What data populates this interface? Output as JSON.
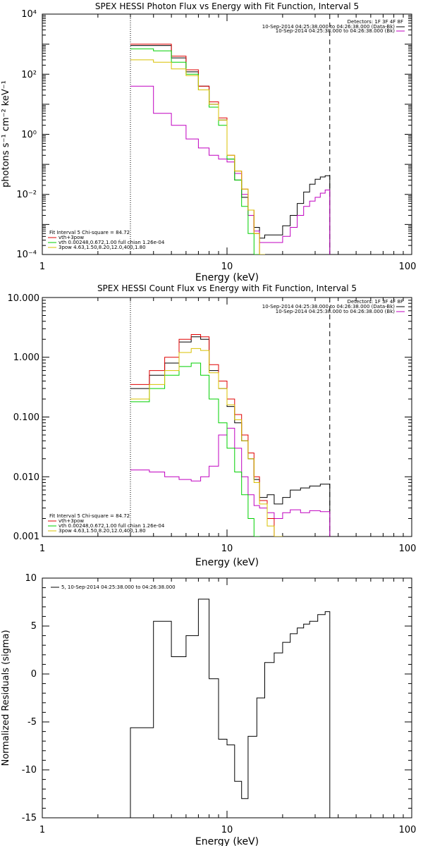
{
  "chart_data": [
    {
      "type": "line",
      "title": "SPEX HESSI Photon Flux vs Energy with Fit Function, Interval 5",
      "xlabel": "Energy (keV)",
      "ylabel": "photons s⁻¹ cm⁻² keV⁻¹",
      "xscale": "log",
      "yscale": "log",
      "xlim": [
        1,
        100
      ],
      "ylim": [
        0.0001,
        10000
      ],
      "x_ticks": [
        "1",
        "10",
        "100"
      ],
      "y_ticks": [
        "10⁻⁴",
        "10⁻²",
        "10⁰",
        "10²",
        "10⁴"
      ],
      "vlines": [
        {
          "x": 3,
          "style": "dotted"
        },
        {
          "x": 36,
          "style": "dashed"
        }
      ],
      "legend_top_right": [
        {
          "text": "Detectors: 1F 3F 4F 8F",
          "color": "#000000"
        },
        {
          "text": "10-Sep-2014 04:25:38.000 to 04:26:38.000 (Data-Bk)",
          "color": "#000000"
        },
        {
          "text": "10-Sep-2014 04:25:38.000 to 04:26:38.000 (Bk)",
          "color": "#c000c0"
        }
      ],
      "legend_bottom_left": [
        {
          "text": "Fit Interval 5   Chi-square = 84.72",
          "color": "#000000"
        },
        {
          "text": "vth+3pow",
          "color": "#e00000"
        },
        {
          "text": "vth 0.00248,0.672,1.00  full chian 1.26e-04",
          "color": "#00d000"
        },
        {
          "text": "3pow 4.63,1.50,8.20,12.0,400,1.80",
          "color": "#d8c000"
        }
      ],
      "edges": [
        3.0,
        3.5,
        4.0,
        4.5,
        5.0,
        5.5,
        6.0,
        6.5,
        7.0,
        7.5,
        8.0,
        8.5,
        9.0,
        9.5,
        10.0,
        11.0,
        12.0,
        13.0,
        14.0,
        15.0,
        16.0,
        18.0,
        20.0,
        22.0,
        24.0,
        26.0,
        28.0,
        30.0,
        32.0,
        34.0,
        36.0
      ],
      "series": [
        {
          "name": "",
          "color": "#000000",
          "values": [
            900,
            900,
            900,
            900,
            350,
            350,
            120,
            120,
            40,
            40,
            10,
            10,
            3,
            3,
            0.15,
            0.03,
            0.008,
            0.002,
            0.0008,
            0.00035,
            0.00045,
            0.00045,
            0.0009,
            0.002,
            0.005,
            0.012,
            0.022,
            0.032,
            0.038,
            0.042
          ]
        },
        {
          "name": "",
          "color": "#c000c0",
          "values": [
            40,
            40,
            5,
            5,
            2,
            2,
            0.7,
            0.7,
            0.35,
            0.35,
            0.2,
            0.2,
            0.15,
            0.15,
            0.12,
            0.05,
            0.01,
            0.002,
            0.0006,
            0.00025,
            0.00025,
            0.00025,
            0.0004,
            0.0008,
            0.002,
            0.004,
            0.006,
            0.008,
            0.011,
            0.014
          ]
        },
        {
          "name": "vth+3pow",
          "color": "#e00000",
          "values": [
            1000,
            1000,
            1000,
            1000,
            400,
            400,
            140,
            140,
            40,
            40,
            12,
            12,
            3.5,
            3.5,
            0.2,
            0.06,
            0.015,
            0.003,
            0.0005,
            8e-05,
            null,
            null,
            null,
            null,
            null,
            null,
            null,
            null,
            null,
            null
          ]
        },
        {
          "name": "vth 0.00248,0.672,1.00  full chian 1.26e-04",
          "color": "#00d000",
          "values": [
            700,
            700,
            600,
            600,
            250,
            250,
            100,
            100,
            30,
            30,
            8,
            8,
            2,
            2,
            0.15,
            0.03,
            0.004,
            0.0005,
            8e-05,
            null,
            null,
            null,
            null,
            null,
            null,
            null,
            null,
            null,
            null,
            null
          ]
        },
        {
          "name": "3pow 4.63,1.50,8.20,12.0,400,1.80",
          "color": "#d8c000",
          "values": [
            300,
            300,
            250,
            250,
            150,
            150,
            90,
            90,
            30,
            30,
            10,
            10,
            3,
            3,
            0.2,
            0.06,
            0.015,
            0.003,
            0.0005,
            8e-05,
            null,
            null,
            null,
            null,
            null,
            null,
            null,
            null,
            null,
            null
          ]
        }
      ]
    },
    {
      "type": "line",
      "title": "SPEX HESSI Count Flux vs Energy with Fit Function, Interval 5",
      "xlabel": "Energy (keV)",
      "ylabel": "",
      "xscale": "log",
      "yscale": "log",
      "xlim": [
        1,
        100
      ],
      "ylim": [
        0.001,
        10
      ],
      "x_ticks": [
        "1",
        "10",
        "100"
      ],
      "y_ticks": [
        "0.001",
        "0.010",
        "0.100",
        "1.000",
        "10.000"
      ],
      "vlines": [
        {
          "x": 3,
          "style": "dotted"
        },
        {
          "x": 36,
          "style": "dashed"
        }
      ],
      "legend_top_right": [
        {
          "text": "Detectors: 1F 3F 4F 8F",
          "color": "#000000"
        },
        {
          "text": "10-Sep-2014 04:25:38.000 to 04:26:38.000 (Data-Bk)",
          "color": "#000000"
        },
        {
          "text": "10-Sep-2014 04:25:38.000 to 04:26:38.000 (Bk)",
          "color": "#c000c0"
        }
      ],
      "legend_bottom_left": [
        {
          "text": "Fit Interval 5   Chi-square = 84.72",
          "color": "#000000"
        },
        {
          "text": "vth+3pow",
          "color": "#e00000"
        },
        {
          "text": "vth 0.00248,0.672,1.00  full chian 1.26e-04",
          "color": "#00d000"
        },
        {
          "text": "3pow 4.63,1.50,8.20,12.0,400,1.80",
          "color": "#d8c000"
        }
      ],
      "edges": [
        3.0,
        3.8,
        4.6,
        5.5,
        6.4,
        7.2,
        8.0,
        9.0,
        10.0,
        11.0,
        12.0,
        13.0,
        14.0,
        15.0,
        16.5,
        18.0,
        20.0,
        22.0,
        25.0,
        28.0,
        32.0,
        36.0
      ],
      "series": [
        {
          "name": "",
          "color": "#000000",
          "values": [
            0.3,
            0.5,
            0.8,
            1.8,
            2.2,
            2.0,
            0.6,
            0.3,
            0.15,
            0.08,
            0.04,
            0.02,
            0.009,
            0.0045,
            0.005,
            0.0035,
            0.0045,
            0.006,
            0.0065,
            0.007,
            0.0075
          ]
        },
        {
          "name": "",
          "color": "#c000c0",
          "values": [
            0.013,
            0.012,
            0.01,
            0.009,
            0.0085,
            0.01,
            0.015,
            0.05,
            0.065,
            0.03,
            0.01,
            0.005,
            0.0033,
            0.003,
            0.0025,
            0.002,
            0.0025,
            0.0028,
            0.0025,
            0.0027,
            0.0026
          ]
        },
        {
          "name": "vth+3pow",
          "color": "#e00000",
          "values": [
            0.35,
            0.6,
            1.0,
            2.0,
            2.4,
            2.2,
            0.75,
            0.4,
            0.2,
            0.11,
            0.05,
            0.025,
            0.01,
            0.004,
            0.002,
            0.0009,
            null,
            null,
            null,
            null,
            null
          ]
        },
        {
          "name": "vth 0.00248,0.672,1.00  full chian 1.26e-04",
          "color": "#00d000",
          "values": [
            0.18,
            0.3,
            0.5,
            0.7,
            0.8,
            0.5,
            0.2,
            0.08,
            0.03,
            0.012,
            0.005,
            0.002,
            0.0009,
            null,
            null,
            null,
            null,
            null,
            null,
            null,
            null
          ]
        },
        {
          "name": "3pow 4.63,1.50,8.20,12.0,400,1.80",
          "color": "#d8c000",
          "values": [
            0.2,
            0.35,
            0.6,
            1.2,
            1.4,
            1.3,
            0.55,
            0.3,
            0.16,
            0.09,
            0.04,
            0.02,
            0.008,
            0.0035,
            0.0015,
            0.0007,
            null,
            null,
            null,
            null,
            null
          ]
        }
      ]
    },
    {
      "type": "line",
      "title": "",
      "xlabel": "Energy (keV)",
      "ylabel": "Normalized Residuals (sigma)",
      "xscale": "log",
      "yscale": "linear",
      "xlim": [
        1,
        100
      ],
      "ylim": [
        -15,
        10
      ],
      "x_ticks": [
        "1",
        "10",
        "100"
      ],
      "y_ticks": [
        "-15",
        "-10",
        "-5",
        "0",
        "5",
        "10"
      ],
      "legend_top_left": [
        {
          "text": "5, 10-Sep-2014 04:25:38.000 to 04:26:38.000",
          "color": "#000000"
        }
      ],
      "edges": [
        3.0,
        4.0,
        5.0,
        6.0,
        7.0,
        8.0,
        9.0,
        10.0,
        11.0,
        12.0,
        13.0,
        14.5,
        16.0,
        18.0,
        20.0,
        22.0,
        24.0,
        26.0,
        28.0,
        31.0,
        34.0,
        36.0
      ],
      "series": [
        {
          "name": "",
          "color": "#000000",
          "values": [
            -5.6,
            5.5,
            1.8,
            4.0,
            7.8,
            -0.5,
            -6.8,
            -7.4,
            -11.2,
            -13.0,
            -6.5,
            -2.5,
            1.2,
            2.2,
            3.3,
            4.2,
            4.8,
            5.2,
            5.5,
            6.2,
            6.5
          ],
          "start_from": -15
        }
      ]
    }
  ]
}
